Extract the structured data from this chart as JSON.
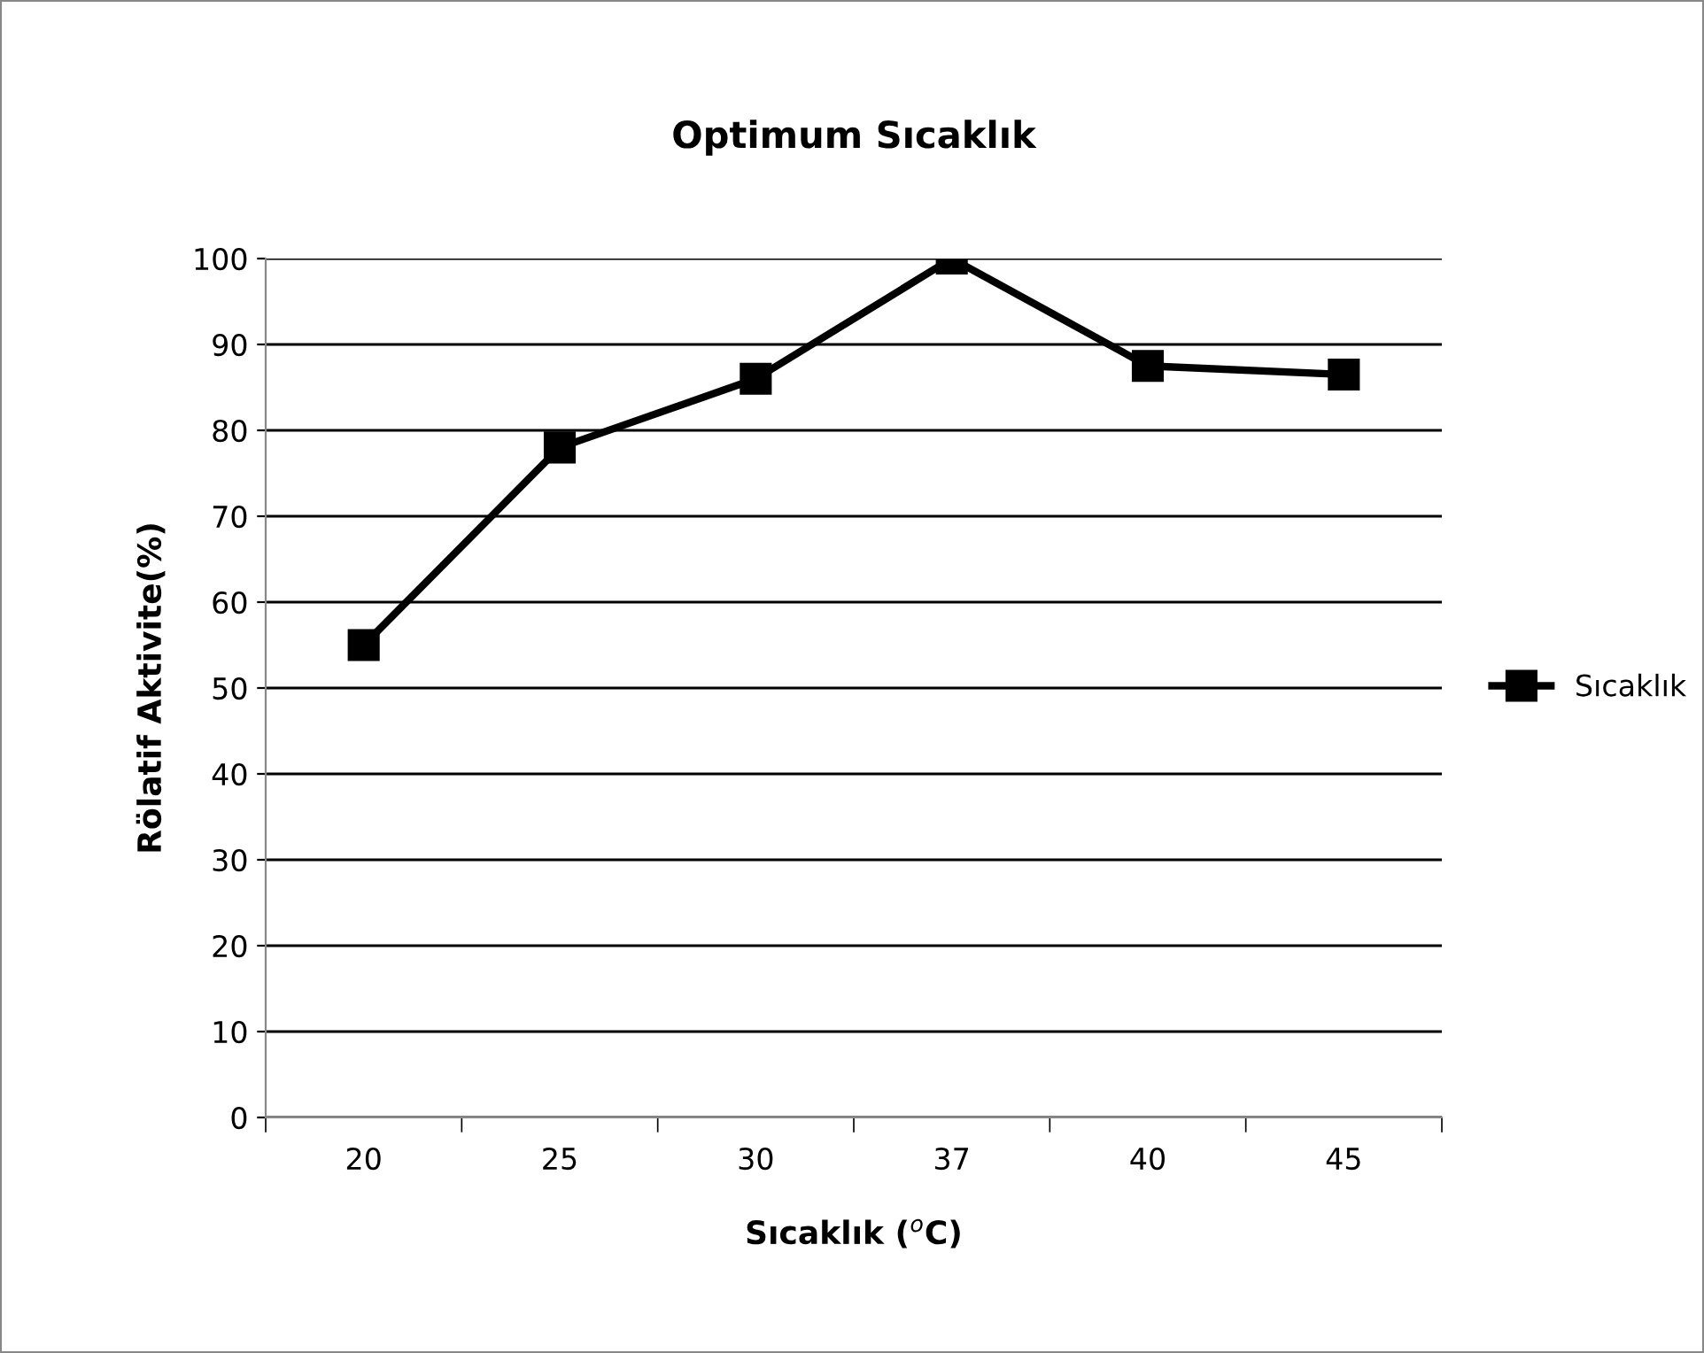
{
  "chart_data": {
    "type": "line",
    "title": "Optimum Sıcaklık",
    "xlabel": "Sıcaklık ($^{o}$C)",
    "ylabel": "Rölatif Aktivite(%)",
    "categories": [
      "20",
      "25",
      "30",
      "37",
      "40",
      "45"
    ],
    "series": [
      {
        "name": "Sıcaklık",
        "color": "#000000",
        "values": [
          55,
          78,
          86,
          100,
          87.5,
          86.5
        ]
      }
    ],
    "ylim": [
      0,
      100
    ],
    "yticks": [
      0,
      10,
      20,
      30,
      40,
      50,
      60,
      70,
      80,
      90,
      100
    ],
    "grid": "y",
    "legend": "right",
    "marker": "square",
    "line_style": "solid"
  }
}
